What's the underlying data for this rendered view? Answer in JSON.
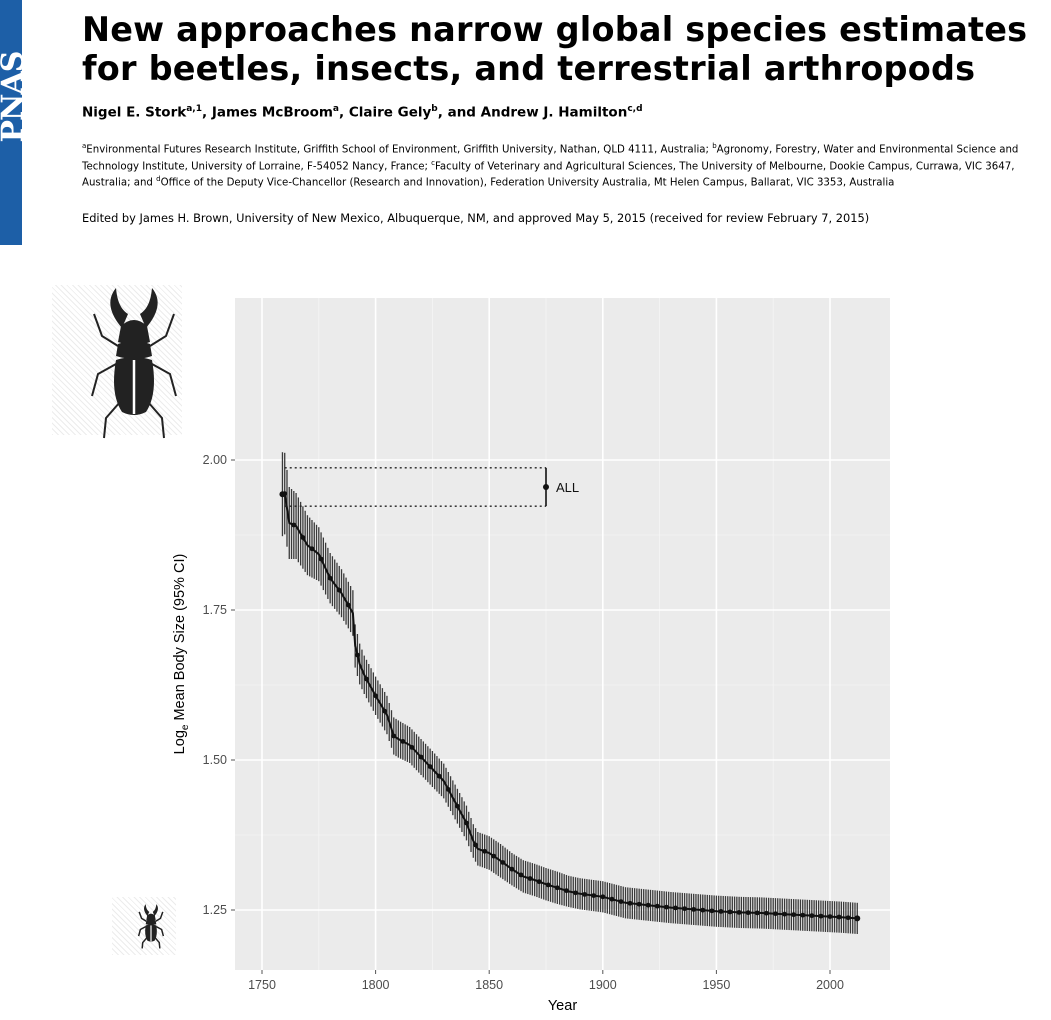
{
  "journal": {
    "name": "PNAS",
    "color": "#1d5fa7"
  },
  "article": {
    "title": "New approaches narrow global species estimates for beetles, insects, and terrestrial arthropods",
    "authors": [
      {
        "name": "Nigel E. Stork",
        "aff": "a,1",
        "sep": ", "
      },
      {
        "name": "James McBroom",
        "aff": "a",
        "sep": ", "
      },
      {
        "name": "Claire Gely",
        "aff": "b",
        "sep": ", and "
      },
      {
        "name": "Andrew J. Hamilton",
        "aff": "c,d",
        "sep": ""
      }
    ],
    "affiliations": [
      {
        "mark": "a",
        "text": "Environmental Futures Research Institute, Griffith School of Environment, Griffith University, Nathan, QLD 4111, Australia; "
      },
      {
        "mark": "b",
        "text": "Agronomy, Forestry, Water and Environmental Science and Technology Institute, University of Lorraine, F-54052 Nancy, France; "
      },
      {
        "mark": "c",
        "text": "Faculty of Veterinary and Agricultural Sciences, The University of Melbourne, Dookie Campus, Currawa, VIC 3647, Australia; and "
      },
      {
        "mark": "d",
        "text": "Office of the Deputy Vice-Chancellor (Research and Innovation), Federation University Australia, Mt Helen Campus, Ballarat, VIC 3353, Australia"
      }
    ],
    "edited_by": "Edited by James H. Brown, University of New Mexico, Albuquerque, NM, and approved May 5, 2015 (received for review February 7, 2015)"
  },
  "icons": [
    "large-stag-beetle-icon",
    "small-stag-beetle-icon"
  ],
  "chart_data": {
    "type": "line",
    "xlabel": "Year",
    "ylabel_main": "Log",
    "ylabel_sub": "e",
    "ylabel_rest": " Mean Body Size (95% CI)",
    "xlim": [
      1745,
      2022
    ],
    "ylim": [
      1.155,
      2.273
    ],
    "x_ticks": [
      1750,
      1800,
      1850,
      1900,
      1950,
      2000
    ],
    "y_ticks": [
      1.25,
      1.5,
      1.75,
      2.0
    ],
    "y_tick_labels": [
      "1.25",
      "1.50",
      "1.75",
      "2.00"
    ],
    "grid": true,
    "background_color": "#ebebeb",
    "ci_color": "#3a3a3a",
    "reference": {
      "label": "ALL",
      "x": 1875,
      "mean": 1.955,
      "lower": 1.923,
      "upper": 1.987,
      "dotted_from_x": 1760
    },
    "series": [
      {
        "x": [
          1759,
          1760,
          1762,
          1765,
          1770,
          1775,
          1780,
          1785,
          1790,
          1791,
          1793,
          1795,
          1800,
          1805,
          1808,
          1810,
          1815,
          1820,
          1825,
          1830,
          1835,
          1840,
          1843,
          1845,
          1850,
          1855,
          1860,
          1865,
          1870,
          1875,
          1880,
          1885,
          1890,
          1900,
          1910,
          1920,
          1930,
          1940,
          1950,
          1960,
          1970,
          1980,
          1990,
          2000,
          2005,
          2012
        ],
        "y": [
          1.943,
          1.944,
          1.895,
          1.89,
          1.858,
          1.843,
          1.803,
          1.778,
          1.745,
          1.69,
          1.66,
          1.642,
          1.607,
          1.575,
          1.54,
          1.535,
          1.525,
          1.505,
          1.485,
          1.465,
          1.43,
          1.395,
          1.365,
          1.352,
          1.345,
          1.332,
          1.318,
          1.306,
          1.3,
          1.293,
          1.287,
          1.281,
          1.277,
          1.272,
          1.262,
          1.258,
          1.254,
          1.251,
          1.248,
          1.246,
          1.245,
          1.243,
          1.241,
          1.239,
          1.238,
          1.236
        ],
        "ci_halfwidth": [
          0.07,
          0.068,
          0.06,
          0.055,
          0.05,
          0.045,
          0.042,
          0.04,
          0.038,
          0.036,
          0.034,
          0.032,
          0.032,
          0.032,
          0.031,
          0.031,
          0.03,
          0.03,
          0.03,
          0.029,
          0.029,
          0.029,
          0.028,
          0.028,
          0.028,
          0.028,
          0.027,
          0.027,
          0.027,
          0.027,
          0.027,
          0.026,
          0.026,
          0.026,
          0.026,
          0.026,
          0.026,
          0.026,
          0.026,
          0.026,
          0.026,
          0.026,
          0.026,
          0.026,
          0.026,
          0.026
        ]
      }
    ]
  }
}
